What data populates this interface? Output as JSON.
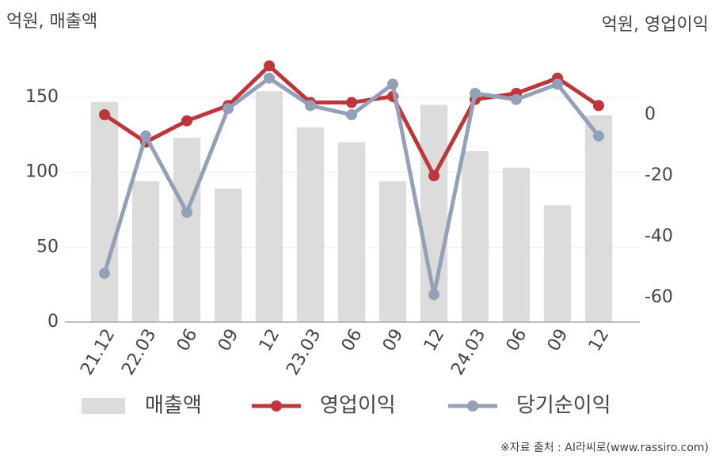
{
  "chart_data": {
    "type": "bar",
    "y_label": "억원, 매출액",
    "y2_label": "억원, 영업이익",
    "source": "※자료 출처 : AI라씨로(www.rassiro.com)",
    "categories": [
      "21.12",
      "22.03",
      "06",
      "09",
      "12",
      "23.03",
      "06",
      "09",
      "12",
      "24.03",
      "06",
      "09",
      "12"
    ],
    "series": [
      {
        "name": "매출액",
        "type": "bar",
        "axis": "y",
        "color": "#dcdcdc",
        "values": [
          147,
          94,
          123,
          89,
          154,
          130,
          120,
          94,
          145,
          114,
          103,
          78,
          138
        ]
      },
      {
        "name": "영업이익",
        "type": "line",
        "axis": "y2",
        "color": "#c0353a",
        "values": [
          0,
          -9,
          -2,
          3,
          16,
          4,
          4,
          6,
          -20,
          5,
          7,
          12,
          3
        ]
      },
      {
        "name": "당기순이익",
        "type": "line",
        "axis": "y2",
        "color": "#94a0b8",
        "values": [
          -52,
          -7,
          -32,
          2,
          12,
          3,
          0,
          10,
          -59,
          7,
          5,
          10,
          -7
        ]
      }
    ],
    "ylim": [
      0,
      175
    ],
    "yticks": [
      0,
      50,
      100,
      150
    ],
    "y2lim": [
      -68,
      18
    ],
    "y2ticks": [
      0,
      -20,
      -40,
      -60
    ],
    "grid": true
  }
}
